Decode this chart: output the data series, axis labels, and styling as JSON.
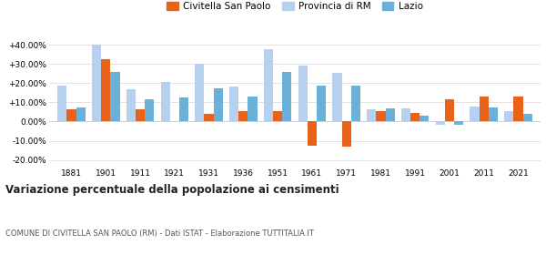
{
  "years": [
    1881,
    1901,
    1911,
    1921,
    1931,
    1936,
    1951,
    1961,
    1971,
    1981,
    1991,
    2001,
    2011,
    2021
  ],
  "civitella": [
    6.5,
    32.5,
    6.5,
    0.3,
    4.0,
    5.5,
    5.5,
    -12.5,
    -13.0,
    5.5,
    4.5,
    11.5,
    13.0,
    13.0
  ],
  "provincia": [
    18.5,
    40.0,
    17.0,
    20.5,
    30.0,
    18.0,
    37.5,
    29.0,
    25.5,
    6.5,
    7.0,
    -1.5,
    8.0,
    5.5
  ],
  "lazio": [
    7.5,
    26.0,
    11.5,
    12.5,
    17.5,
    13.0,
    26.0,
    18.5,
    18.5,
    7.0,
    3.0,
    -1.5,
    7.5,
    4.0
  ],
  "color_civitella": "#e8621a",
  "color_provincia": "#b8d0f0",
  "color_lazio": "#6ab0d8",
  "title": "Variazione percentuale della popolazione ai censimenti",
  "subtitle": "COMUNE DI CIVITELLA SAN PAOLO (RM) - Dati ISTAT - Elaborazione TUTTITALIA.IT",
  "ytick_vals": [
    -20,
    -10,
    0,
    10,
    20,
    30,
    40
  ],
  "ylim": [
    -23,
    46
  ],
  "bg_color": "#ffffff",
  "grid_color": "#dddddd"
}
